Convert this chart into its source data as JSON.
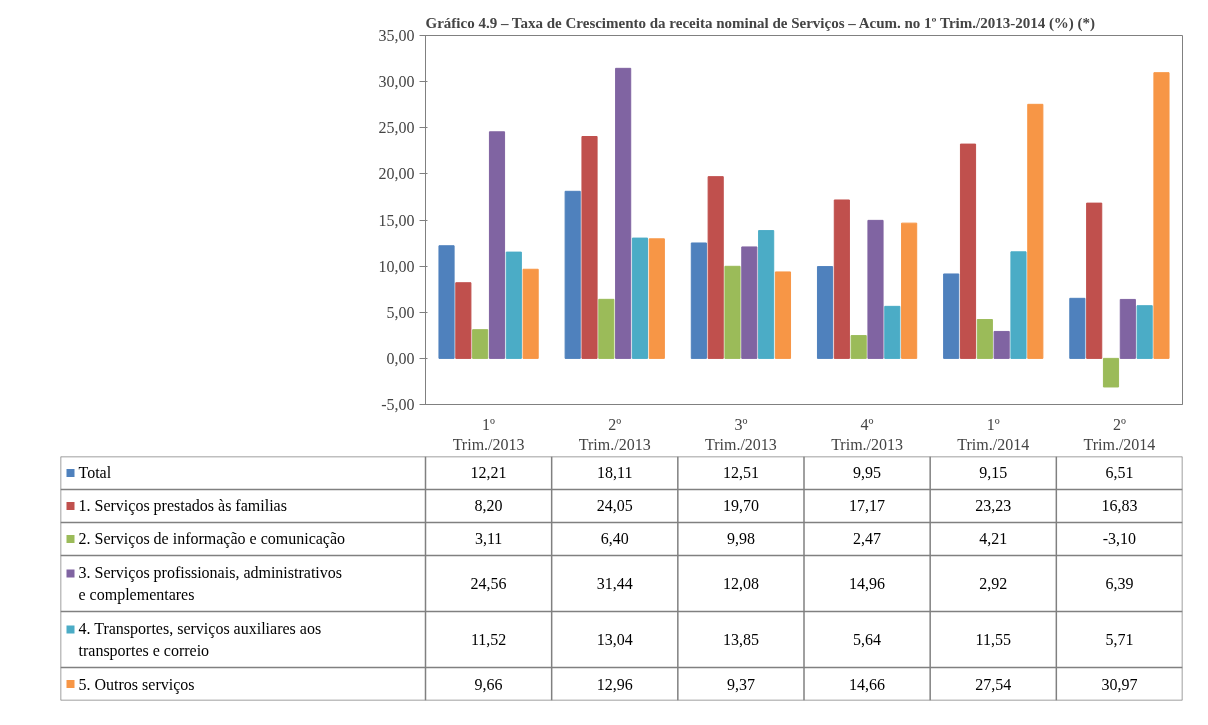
{
  "chart_data": {
    "type": "bar",
    "title": "Gráfico 4.9 – Taxa de Crescimento da receita nominal de Serviços – Acum. no 1º Trim./2013-2014 (%) (*)",
    "categories": [
      "1º\nTrim./2013",
      "2º\nTrim./2013",
      "3º\nTrim./2013",
      "4º\nTrim./2013",
      "1º\nTrim./2014",
      "2º\nTrim./2014"
    ],
    "series": [
      {
        "name": "Total",
        "color": "#4f81bd",
        "values": [
          12.21,
          18.11,
          12.51,
          9.95,
          9.15,
          6.51
        ],
        "value_labels": [
          "12,21",
          "18,11",
          "12,51",
          "9,95",
          "9,15",
          "6,51"
        ]
      },
      {
        "name": "1. Serviços prestados às familias",
        "color": "#c0504d",
        "values": [
          8.2,
          24.05,
          19.7,
          17.17,
          23.23,
          16.83
        ],
        "value_labels": [
          "8,20",
          "24,05",
          "19,70",
          "17,17",
          "23,23",
          "16,83"
        ]
      },
      {
        "name": "2. Serviços de informação e comunicação",
        "color": "#9bbb59",
        "values": [
          3.11,
          6.4,
          9.98,
          2.47,
          4.21,
          -3.1
        ],
        "value_labels": [
          "3,11",
          "6,40",
          "9,98",
          "2,47",
          "4,21",
          "-3,10"
        ]
      },
      {
        "name": "3. Serviços profissionais, administrativos e complementares",
        "color": "#8064a2",
        "values": [
          24.56,
          31.44,
          12.08,
          14.96,
          2.92,
          6.39
        ],
        "value_labels": [
          "24,56",
          "31,44",
          "12,08",
          "14,96",
          "2,92",
          "6,39"
        ]
      },
      {
        "name": "4. Transportes, serviços auxiliares aos transportes e correio",
        "color": "#4bacc6",
        "values": [
          11.52,
          13.04,
          13.85,
          5.64,
          11.55,
          5.71
        ],
        "value_labels": [
          "11,52",
          "13,04",
          "13,85",
          "5,64",
          "11,55",
          "5,71"
        ]
      },
      {
        "name": "5. Outros serviços",
        "color": "#f79646",
        "values": [
          9.66,
          12.96,
          9.37,
          14.66,
          27.54,
          30.97
        ],
        "value_labels": [
          "9,66",
          "12,96",
          "9,37",
          "14,66",
          "27,54",
          "30,97"
        ]
      }
    ],
    "ylim": [
      -5,
      35
    ],
    "yticks": [
      {
        "value": -5,
        "label": "-5,00"
      },
      {
        "value": 0,
        "label": "0,00"
      },
      {
        "value": 5,
        "label": "5,00"
      },
      {
        "value": 10,
        "label": "10,00"
      },
      {
        "value": 15,
        "label": "15,00"
      },
      {
        "value": 20,
        "label": "20,00"
      },
      {
        "value": 25,
        "label": "25,00"
      },
      {
        "value": 30,
        "label": "30,00"
      },
      {
        "value": 35,
        "label": "35,00"
      }
    ],
    "grid": false,
    "legend": "bottom"
  }
}
